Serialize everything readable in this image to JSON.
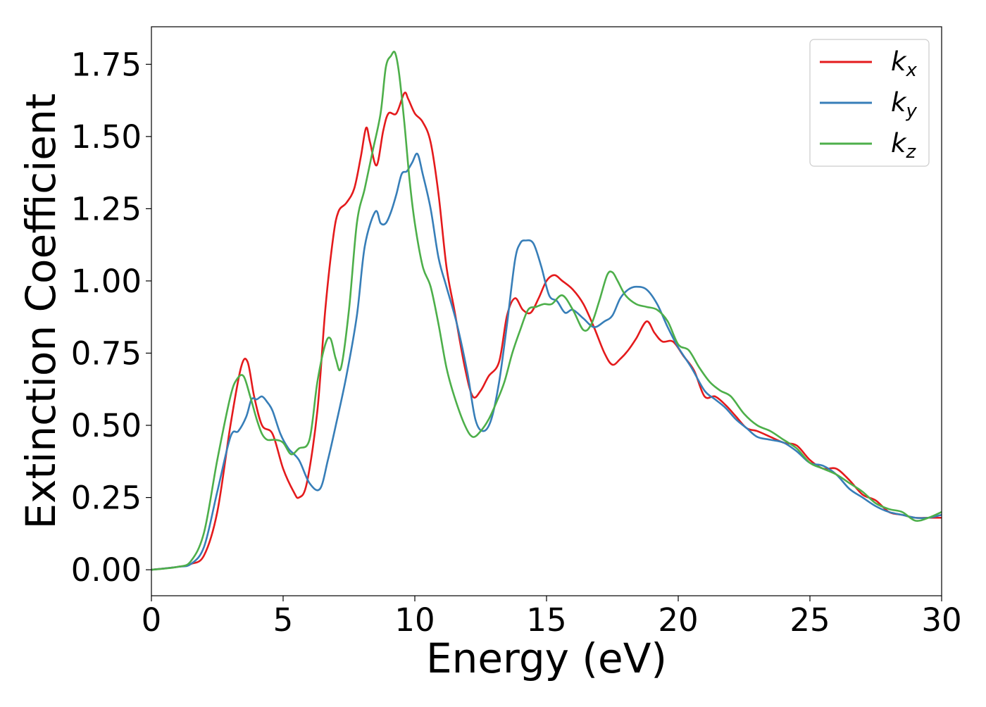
{
  "chart_data": {
    "type": "line",
    "title": "",
    "xlabel": "Energy (eV)",
    "ylabel": "Extinction Coefficient",
    "xlim": [
      0,
      30
    ],
    "ylim": [
      -0.09,
      1.88
    ],
    "xticks": [
      0,
      5,
      10,
      15,
      20,
      25,
      30
    ],
    "xtick_labels": [
      "0",
      "5",
      "10",
      "15",
      "20",
      "25",
      "30"
    ],
    "yticks": [
      0.0,
      0.25,
      0.5,
      0.75,
      1.0,
      1.25,
      1.5,
      1.75
    ],
    "ytick_labels": [
      "0.00",
      "0.25",
      "0.50",
      "0.75",
      "1.00",
      "1.25",
      "1.50",
      "1.75"
    ],
    "grid": false,
    "legend_position": "top-right",
    "series": [
      {
        "name": "k",
        "subscript": "x",
        "color": "#e41a1c",
        "x": [
          0,
          1,
          1.5,
          2,
          2.5,
          3,
          3.4,
          3.65,
          3.9,
          4.2,
          4.6,
          5.0,
          5.4,
          5.6,
          5.9,
          6.3,
          6.6,
          6.9,
          7.1,
          7.4,
          7.7,
          7.95,
          8.15,
          8.3,
          8.55,
          8.8,
          9.0,
          9.3,
          9.6,
          9.75,
          10.0,
          10.3,
          10.6,
          10.9,
          11.2,
          11.5,
          11.9,
          12.2,
          12.5,
          12.8,
          13.2,
          13.5,
          13.8,
          14.1,
          14.4,
          14.7,
          15.0,
          15.3,
          15.6,
          16.0,
          16.4,
          16.8,
          17.2,
          17.5,
          17.8,
          18.1,
          18.4,
          18.8,
          19.1,
          19.4,
          19.8,
          20.2,
          20.6,
          21.0,
          21.4,
          21.8,
          22.2,
          22.6,
          23.0,
          23.5,
          24.0,
          24.5,
          25.0,
          25.5,
          26.0,
          26.5,
          27.0,
          27.5,
          28.0,
          28.5,
          29.0,
          29.5,
          30.0
        ],
        "y": [
          0,
          0.01,
          0.02,
          0.05,
          0.2,
          0.5,
          0.7,
          0.72,
          0.6,
          0.5,
          0.47,
          0.35,
          0.27,
          0.25,
          0.3,
          0.55,
          0.9,
          1.15,
          1.24,
          1.27,
          1.32,
          1.43,
          1.53,
          1.48,
          1.4,
          1.52,
          1.58,
          1.58,
          1.65,
          1.63,
          1.58,
          1.55,
          1.48,
          1.3,
          1.05,
          0.9,
          0.7,
          0.6,
          0.62,
          0.67,
          0.72,
          0.88,
          0.94,
          0.9,
          0.89,
          0.94,
          1.0,
          1.02,
          1.0,
          0.97,
          0.92,
          0.84,
          0.75,
          0.71,
          0.73,
          0.76,
          0.8,
          0.86,
          0.82,
          0.79,
          0.79,
          0.74,
          0.69,
          0.6,
          0.6,
          0.57,
          0.53,
          0.49,
          0.48,
          0.46,
          0.44,
          0.43,
          0.38,
          0.35,
          0.35,
          0.31,
          0.26,
          0.24,
          0.2,
          0.19,
          0.18,
          0.18,
          0.18
        ]
      },
      {
        "name": "k",
        "subscript": "y",
        "color": "#377eb8",
        "x": [
          0,
          1,
          1.5,
          2,
          2.5,
          3,
          3.3,
          3.6,
          3.8,
          4.0,
          4.2,
          4.4,
          4.6,
          4.9,
          5.2,
          5.6,
          6.0,
          6.4,
          6.7,
          7.0,
          7.4,
          7.8,
          8.1,
          8.5,
          8.7,
          8.9,
          9.1,
          9.3,
          9.5,
          9.7,
          9.9,
          10.1,
          10.3,
          10.6,
          10.9,
          11.2,
          11.6,
          12.0,
          12.3,
          12.6,
          12.9,
          13.2,
          13.5,
          13.8,
          14.0,
          14.2,
          14.5,
          14.8,
          15.1,
          15.4,
          15.7,
          16.0,
          16.4,
          16.8,
          17.2,
          17.5,
          17.8,
          18.1,
          18.4,
          18.8,
          19.2,
          19.6,
          20.0,
          20.5,
          21.0,
          21.4,
          21.8,
          22.2,
          22.6,
          23.0,
          23.5,
          24.0,
          24.5,
          25.0,
          25.5,
          26.0,
          26.5,
          27.0,
          27.5,
          28.0,
          28.5,
          29.0,
          29.5,
          30.0
        ],
        "y": [
          0,
          0.01,
          0.02,
          0.08,
          0.27,
          0.46,
          0.48,
          0.53,
          0.59,
          0.59,
          0.6,
          0.58,
          0.55,
          0.47,
          0.42,
          0.38,
          0.3,
          0.28,
          0.38,
          0.5,
          0.67,
          0.88,
          1.12,
          1.24,
          1.2,
          1.2,
          1.24,
          1.3,
          1.37,
          1.38,
          1.41,
          1.44,
          1.37,
          1.25,
          1.08,
          0.98,
          0.85,
          0.68,
          0.52,
          0.48,
          0.52,
          0.65,
          0.85,
          1.07,
          1.13,
          1.14,
          1.13,
          1.05,
          0.95,
          0.93,
          0.89,
          0.9,
          0.87,
          0.84,
          0.86,
          0.88,
          0.94,
          0.97,
          0.98,
          0.97,
          0.92,
          0.84,
          0.77,
          0.7,
          0.62,
          0.59,
          0.56,
          0.52,
          0.49,
          0.46,
          0.45,
          0.44,
          0.41,
          0.37,
          0.36,
          0.33,
          0.28,
          0.25,
          0.22,
          0.2,
          0.19,
          0.18,
          0.18,
          0.19
        ]
      },
      {
        "name": "k",
        "subscript": "z",
        "color": "#4daf4a",
        "x": [
          0,
          1,
          1.5,
          2,
          2.5,
          3,
          3.25,
          3.5,
          3.75,
          4.0,
          4.2,
          4.4,
          4.7,
          5.0,
          5.3,
          5.6,
          6.0,
          6.3,
          6.6,
          6.8,
          7.0,
          7.2,
          7.5,
          7.8,
          8.1,
          8.4,
          8.7,
          8.9,
          9.1,
          9.25,
          9.4,
          9.6,
          9.8,
          10.0,
          10.3,
          10.6,
          10.9,
          11.2,
          11.5,
          11.9,
          12.2,
          12.5,
          12.8,
          13.1,
          13.4,
          13.7,
          14.0,
          14.3,
          14.6,
          14.9,
          15.2,
          15.6,
          16.0,
          16.4,
          16.7,
          17.0,
          17.3,
          17.5,
          17.7,
          18.0,
          18.4,
          18.8,
          19.2,
          19.6,
          20.0,
          20.4,
          20.8,
          21.2,
          21.6,
          22.0,
          22.5,
          23.0,
          23.5,
          24.0,
          24.5,
          25.0,
          25.5,
          26.0,
          26.5,
          27.0,
          27.5,
          28.0,
          28.5,
          29.0,
          29.5,
          30.0
        ],
        "y": [
          0,
          0.01,
          0.03,
          0.13,
          0.38,
          0.6,
          0.66,
          0.67,
          0.6,
          0.52,
          0.47,
          0.45,
          0.45,
          0.44,
          0.4,
          0.42,
          0.45,
          0.65,
          0.78,
          0.8,
          0.73,
          0.7,
          0.9,
          1.2,
          1.32,
          1.45,
          1.58,
          1.74,
          1.78,
          1.79,
          1.72,
          1.55,
          1.35,
          1.2,
          1.05,
          0.98,
          0.85,
          0.7,
          0.6,
          0.5,
          0.46,
          0.48,
          0.52,
          0.58,
          0.65,
          0.75,
          0.83,
          0.9,
          0.91,
          0.92,
          0.92,
          0.95,
          0.9,
          0.83,
          0.85,
          0.93,
          1.02,
          1.03,
          1.0,
          0.95,
          0.92,
          0.91,
          0.9,
          0.86,
          0.78,
          0.76,
          0.7,
          0.65,
          0.62,
          0.6,
          0.54,
          0.5,
          0.48,
          0.45,
          0.42,
          0.37,
          0.35,
          0.33,
          0.3,
          0.27,
          0.23,
          0.21,
          0.2,
          0.17,
          0.18,
          0.2
        ]
      }
    ]
  }
}
